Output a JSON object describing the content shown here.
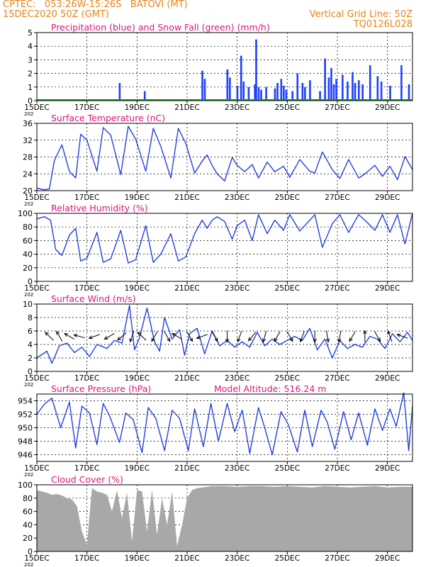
{
  "header": {
    "line1": "CPTEC:   053:26W-15:26S   BATOVI (MT)",
    "line2": "15DEC2020 50Z (GMT)",
    "grid_note": "Vertical Grid Line: 50Z",
    "code": "TQ0126L028"
  },
  "colors": {
    "header": "#e8841c",
    "title": "#e0147a",
    "precip": "#1f3fff",
    "snow": "#00aa00",
    "line": "#2440e0",
    "cloud": "#a8a8a8",
    "arrow": "#000000"
  },
  "x_axis": {
    "ticks": [
      "15DEC",
      "17DEC",
      "19DEC",
      "21DEC",
      "23DEC",
      "25DEC",
      "27DEC",
      "29DEC"
    ],
    "tick_days": [
      0,
      2,
      4,
      6,
      8,
      10,
      12,
      14
    ],
    "range_days": [
      0,
      15
    ],
    "year_fragment": "202"
  },
  "chart_data": [
    {
      "id": "precip",
      "type": "bar",
      "title": "Precipitation (blue) and Snow Fall (green) (mm/h)",
      "ylim": [
        0,
        5
      ],
      "yticks": [
        0,
        1,
        2,
        3,
        4,
        5
      ],
      "series": [
        {
          "name": "Precipitation",
          "color": "#1f3fff",
          "x": [
            3.3,
            4.3,
            6.6,
            6.7,
            7.6,
            7.7,
            8.0,
            8.15,
            8.25,
            8.45,
            8.7,
            8.75,
            8.85,
            8.95,
            9.15,
            9.5,
            9.6,
            9.75,
            9.85,
            9.95,
            10.2,
            10.4,
            10.6,
            10.7,
            10.9,
            11.3,
            11.5,
            11.65,
            11.75,
            11.85,
            11.95,
            12.2,
            12.4,
            12.6,
            12.7,
            12.85,
            13.0,
            13.3,
            13.6,
            13.75,
            14.1,
            14.55,
            14.85
          ],
          "values": [
            1.3,
            0.7,
            2.2,
            1.6,
            2.3,
            1.7,
            1.1,
            3.3,
            1.4,
            1.0,
            1.2,
            4.5,
            1.0,
            0.8,
            1.0,
            0.9,
            1.3,
            1.6,
            1.1,
            0.8,
            0.7,
            2.0,
            1.3,
            1.0,
            1.5,
            0.7,
            3.1,
            1.7,
            2.4,
            1.2,
            1.6,
            1.9,
            1.4,
            2.1,
            1.3,
            1.5,
            1.2,
            2.6,
            1.8,
            1.4,
            1.1,
            2.6,
            1.2
          ]
        },
        {
          "name": "Snow Fall",
          "color": "#00aa00",
          "x": [
            0,
            15
          ],
          "values": [
            0,
            0
          ]
        }
      ]
    },
    {
      "id": "temp",
      "type": "line",
      "title": "Surface Temperature (nC)",
      "ylim": [
        20,
        36
      ],
      "yticks": [
        20,
        24,
        28,
        32,
        36
      ],
      "x": [
        0.0,
        0.3,
        0.5,
        0.7,
        1.0,
        1.3,
        1.55,
        1.75,
        2.0,
        2.4,
        2.65,
        2.95,
        3.35,
        3.65,
        3.95,
        4.35,
        4.65,
        4.95,
        5.35,
        5.65,
        5.95,
        6.3,
        6.6,
        6.8,
        7.0,
        7.2,
        7.5,
        7.8,
        8.0,
        8.3,
        8.6,
        8.85,
        9.2,
        9.5,
        9.85,
        10.1,
        10.5,
        10.9,
        11.1,
        11.4,
        11.8,
        12.1,
        12.45,
        12.85,
        13.1,
        13.5,
        13.8,
        14.1,
        14.4,
        14.7,
        15.0
      ],
      "values": [
        20.6,
        20.2,
        20.4,
        27.2,
        30.9,
        24.6,
        23.0,
        33.4,
        32.0,
        24.6,
        35.0,
        33.2,
        23.8,
        35.3,
        32.2,
        24.6,
        34.8,
        30.5,
        23.0,
        34.8,
        31.2,
        24.2,
        27.0,
        28.5,
        26.0,
        24.0,
        22.3,
        27.9,
        26.0,
        24.5,
        26.2,
        23.0,
        26.8,
        24.5,
        25.8,
        23.2,
        27.4,
        24.6,
        24.2,
        29.2,
        25.0,
        22.9,
        27.4,
        23.0,
        24.0,
        26.0,
        23.4,
        25.8,
        22.6,
        28.1,
        25.0
      ]
    },
    {
      "id": "rh",
      "type": "line",
      "title": "Relative Humidity (%)",
      "ylim": [
        0,
        100
      ],
      "yticks": [
        0,
        20,
        40,
        60,
        80,
        100
      ],
      "x": [
        0.0,
        0.3,
        0.55,
        0.75,
        1.0,
        1.3,
        1.55,
        1.75,
        2.0,
        2.4,
        2.65,
        2.95,
        3.35,
        3.65,
        3.95,
        4.35,
        4.65,
        4.95,
        5.35,
        5.65,
        5.95,
        6.3,
        6.6,
        6.8,
        7.0,
        7.2,
        7.5,
        7.8,
        8.0,
        8.3,
        8.6,
        8.85,
        9.2,
        9.5,
        9.85,
        10.1,
        10.5,
        10.9,
        11.1,
        11.4,
        11.8,
        12.1,
        12.45,
        12.85,
        13.1,
        13.5,
        13.8,
        14.1,
        14.4,
        14.7,
        15.0
      ],
      "values": [
        92,
        95,
        90,
        47,
        38,
        68,
        78,
        30,
        34,
        72,
        28,
        33,
        75,
        27,
        32,
        82,
        28,
        40,
        70,
        30,
        36,
        70,
        90,
        78,
        90,
        95,
        88,
        62,
        82,
        90,
        60,
        98,
        70,
        90,
        75,
        98,
        74,
        90,
        98,
        50,
        85,
        98,
        72,
        98,
        90,
        75,
        98,
        72,
        98,
        55,
        100
      ]
    },
    {
      "id": "wind",
      "type": "line",
      "title": "Surface Wind (m/s)",
      "ylim": [
        0,
        10
      ],
      "yticks": [
        0,
        2,
        4,
        6,
        8,
        10
      ],
      "x": [
        0.0,
        0.4,
        0.6,
        0.9,
        1.2,
        1.5,
        1.8,
        2.1,
        2.4,
        2.8,
        3.1,
        3.4,
        3.7,
        3.9,
        4.1,
        4.4,
        4.7,
        4.9,
        5.1,
        5.4,
        5.7,
        5.9,
        6.1,
        6.4,
        6.7,
        7.0,
        7.3,
        7.6,
        7.9,
        8.2,
        8.5,
        8.8,
        9.1,
        9.4,
        9.7,
        10.0,
        10.3,
        10.6,
        10.9,
        11.2,
        11.5,
        11.8,
        12.1,
        12.4,
        12.7,
        13.0,
        13.3,
        13.6,
        13.9,
        14.2,
        14.5,
        14.8,
        15.0
      ],
      "values": [
        2.0,
        3.0,
        1.2,
        3.8,
        4.2,
        2.8,
        3.6,
        2.2,
        4.0,
        3.4,
        4.6,
        4.2,
        9.8,
        3.2,
        5.0,
        9.4,
        4.4,
        3.0,
        8.0,
        4.8,
        6.2,
        2.4,
        5.6,
        6.4,
        2.6,
        6.0,
        3.8,
        4.6,
        3.6,
        4.4,
        3.6,
        5.8,
        3.8,
        4.8,
        4.0,
        4.6,
        5.2,
        4.6,
        6.4,
        3.2,
        4.8,
        2.0,
        4.6,
        3.4,
        4.0,
        3.6,
        5.2,
        4.8,
        3.4,
        5.6,
        4.4,
        5.8,
        4.6
      ],
      "arrows_x": [
        0.5,
        0.9,
        1.3,
        1.7,
        2.3,
        2.9,
        3.4,
        3.8,
        4.2,
        4.7,
        5.2,
        5.6,
        6.1,
        6.6,
        7.1,
        7.6,
        8.1,
        8.6,
        9.1,
        9.6,
        10.1,
        10.6,
        11.1,
        11.6,
        12.1,
        12.6,
        13.1,
        13.6,
        14.1,
        14.6
      ],
      "arrows_dir_deg": [
        135,
        120,
        150,
        165,
        200,
        210,
        220,
        250,
        135,
        240,
        300,
        150,
        300,
        200,
        300,
        270,
        250,
        230,
        255,
        240,
        300,
        250,
        270,
        280,
        260,
        240,
        90,
        300,
        110,
        160
      ]
    },
    {
      "id": "press",
      "type": "line",
      "title": "Surface Pressure (hPa)",
      "note": "Model Altitude: 516.24  m",
      "ylim": [
        945,
        955
      ],
      "yticks": [
        946,
        948,
        950,
        952,
        954
      ],
      "x": [
        0.0,
        0.3,
        0.6,
        0.95,
        1.3,
        1.55,
        1.8,
        2.1,
        2.4,
        2.65,
        2.9,
        3.3,
        3.55,
        3.85,
        4.2,
        4.45,
        4.75,
        5.1,
        5.4,
        5.7,
        6.05,
        6.3,
        6.65,
        6.95,
        7.25,
        7.6,
        7.9,
        8.2,
        8.5,
        8.85,
        9.1,
        9.4,
        9.75,
        10.05,
        10.4,
        10.7,
        11.0,
        11.35,
        11.6,
        11.9,
        12.25,
        12.55,
        12.85,
        13.2,
        13.5,
        13.8,
        14.1,
        14.35,
        14.65,
        14.85,
        15.0
      ],
      "values": [
        952.0,
        953.5,
        954.4,
        950.0,
        953.8,
        947.0,
        953.2,
        952.2,
        947.5,
        953.6,
        951.8,
        947.8,
        952.2,
        951.2,
        946.3,
        953.0,
        951.4,
        946.6,
        952.6,
        951.4,
        946.6,
        952.8,
        947.2,
        953.6,
        948.0,
        953.6,
        949.4,
        952.6,
        946.2,
        953.0,
        950.0,
        946.0,
        952.4,
        950.4,
        946.4,
        952.6,
        947.2,
        952.6,
        950.8,
        946.8,
        952.4,
        948.2,
        952.2,
        947.4,
        952.8,
        949.6,
        952.8,
        950.2,
        955.2,
        946.6,
        953.2
      ]
    },
    {
      "id": "cloud",
      "type": "area",
      "title": "Cloud Cover (%)",
      "ylim": [
        0,
        100
      ],
      "yticks": [
        0,
        20,
        40,
        60,
        80,
        100
      ],
      "x": [
        0.0,
        0.2,
        0.4,
        0.6,
        0.8,
        1.0,
        1.2,
        1.4,
        1.6,
        1.8,
        2.0,
        2.2,
        2.4,
        2.6,
        2.8,
        3.0,
        3.2,
        3.4,
        3.6,
        3.8,
        4.0,
        4.2,
        4.4,
        4.6,
        4.8,
        5.0,
        5.2,
        5.4,
        5.6,
        5.8,
        6.0,
        6.2,
        6.4,
        6.6,
        6.8,
        7.0,
        7.5,
        8.0,
        8.5,
        9.0,
        9.5,
        10.0,
        10.5,
        11.0,
        11.5,
        12.0,
        12.5,
        13.0,
        13.5,
        14.0,
        14.5,
        15.0
      ],
      "values": [
        92,
        90,
        88,
        85,
        86,
        84,
        80,
        78,
        68,
        30,
        10,
        95,
        90,
        88,
        85,
        60,
        92,
        50,
        88,
        15,
        92,
        90,
        30,
        92,
        25,
        80,
        40,
        90,
        8,
        40,
        80,
        92,
        95,
        96,
        97,
        98,
        98,
        97,
        98,
        98,
        97,
        98,
        97,
        96,
        98,
        97,
        96,
        97,
        98,
        96,
        97,
        97
      ]
    }
  ]
}
